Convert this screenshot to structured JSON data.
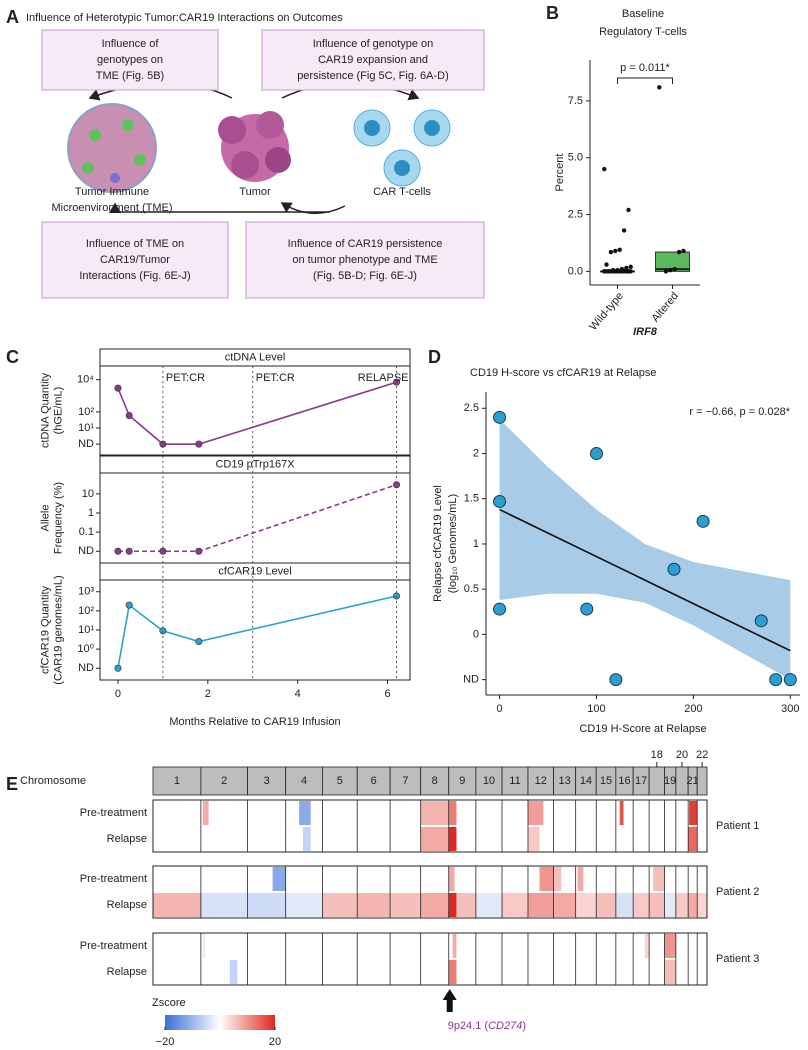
{
  "panel_a": {
    "label": "A",
    "title": "Influence of Heterotypic Tumor:CAR19 Interactions on Outcomes",
    "boxes": [
      {
        "lines": [
          "Influence of",
          "genotypes on",
          "TME (Fig. 5B)"
        ]
      },
      {
        "lines": [
          "Influence of genotype on",
          "CAR19 expansion and",
          "persistence (Fig 5C, Fig. 6A-D)"
        ]
      },
      {
        "lines": [
          "Influence of TME on",
          "CAR19/Tumor",
          "Interactions (Fig. 6E-J)"
        ]
      },
      {
        "lines": [
          "Influence of CAR19 persistence",
          "on tumor phenotype and TME",
          "(Fig. 5B-D; Fig. 6E-J)"
        ]
      }
    ],
    "nodes": [
      {
        "lines": [
          "Tumor Immune",
          "Microenvironment (TME)"
        ],
        "color": "#3f9f3f"
      },
      {
        "lines": [
          "Tumor"
        ],
        "color": "#8b3a8f"
      },
      {
        "lines": [
          "CAR T-cells"
        ],
        "color": "#2e9fd0"
      }
    ]
  },
  "chart_data": [
    {
      "label": "B",
      "type": "box",
      "title": [
        "Baseline",
        "Regulatory T-cells"
      ],
      "ylabel": "Percent",
      "xlabel": "IRF8",
      "categories": [
        "Wild-type",
        "Altered"
      ],
      "points": [
        [
          4.5,
          2.7,
          1.8,
          0.95,
          0.9,
          0.85,
          0.3,
          0.2,
          0.15,
          0.1,
          0.05,
          0.05,
          0,
          0,
          0,
          0,
          0,
          0,
          0,
          0,
          0,
          0,
          0,
          0,
          0,
          0,
          0,
          0
        ],
        [
          8.1,
          0.9,
          0.85,
          0.1,
          0.05,
          0
        ]
      ],
      "boxes": [
        {
          "q1": 0,
          "median": 0,
          "q3": 0
        },
        {
          "q1": 0,
          "median": 0.1,
          "q3": 0.85
        }
      ],
      "colors": [
        "#888888",
        "#5cb85c"
      ],
      "ylim": [
        -0.6,
        9.3
      ],
      "yticks": [
        {
          "value": 0,
          "label": "0.0"
        },
        2.5,
        {
          "value": 5,
          "label": "5.0"
        },
        7.5
      ],
      "annotation": "p = 0.011*"
    },
    {
      "label": "C",
      "type": "line",
      "xlabel": "Months Relative to CAR19 Infusion",
      "xlim": [
        -0.4,
        6.5
      ],
      "xticks": [
        0,
        2,
        4,
        6
      ],
      "vlines": [
        {
          "x": 1,
          "label": "PET:CR"
        },
        {
          "x": 3,
          "label": "PET:CR"
        },
        {
          "x": 6.2,
          "label": "RELAPSE"
        }
      ],
      "panels": [
        {
          "title": "ctDNA Level",
          "ylabel": [
            "ctDNA Quantity",
            "(hGE/mL)"
          ],
          "log_y": true,
          "ylim": [
            0.5,
            30000
          ],
          "yticks": [
            {
              "value": 1,
              "label": "ND"
            },
            {
              "value": 10,
              "label": "10¹"
            },
            {
              "value": 100,
              "label": "10²"
            },
            {
              "value": 10000,
              "label": "10⁴"
            }
          ],
          "x": [
            0,
            0.25,
            1,
            1.8,
            6.2
          ],
          "values": [
            3000,
            60,
            1,
            1,
            7000
          ],
          "color": "#8b3a8f",
          "dashed": false
        },
        {
          "title": "CD19 pTrp167X",
          "ylabel": [
            "Allele",
            "Frequency (%)"
          ],
          "log_y": true,
          "ylim": [
            0.005,
            60
          ],
          "yticks": [
            {
              "value": 0.01,
              "label": "ND"
            },
            0.1,
            1,
            10
          ],
          "x": [
            0,
            0.25,
            1,
            1.8,
            6.2
          ],
          "values": [
            0.01,
            0.01,
            0.01,
            0.01,
            30
          ],
          "color": "#8b3a8f",
          "dashed": true
        },
        {
          "title": "cfCAR19 Level",
          "ylabel": [
            "cfCAR19 Quantity",
            "(CAR19 genomes/mL)"
          ],
          "log_y": true,
          "ylim": [
            0.05,
            2000
          ],
          "yticks": [
            {
              "value": 0.1,
              "label": "ND"
            },
            {
              "value": 1,
              "label": "10⁰"
            },
            {
              "value": 10,
              "label": "10¹"
            },
            {
              "value": 100,
              "label": "10²"
            },
            {
              "value": 1000,
              "label": "10³"
            }
          ],
          "x": [
            0,
            0.25,
            1,
            1.8,
            6.2
          ],
          "values": [
            0.1,
            200,
            9,
            2.5,
            600
          ],
          "color": "#2aa3c9",
          "dashed": false
        }
      ]
    },
    {
      "label": "D",
      "type": "scatter",
      "title": "CD19 H-score vs cfCAR19 at Relapse",
      "annotation": "r = −0.66, p = 0.028*",
      "xlabel": "CD19 H-Score at Relapse",
      "ylabel": [
        "Relapse cfCAR19 Level",
        "(log₁₀ Genomes/mL)"
      ],
      "x": [
        0,
        0,
        0,
        90,
        100,
        120,
        180,
        210,
        270,
        285,
        300
      ],
      "values": [
        2.4,
        1.47,
        0.28,
        0.28,
        2.0,
        -0.5,
        0.72,
        1.25,
        0.15,
        -0.5,
        -0.5
      ],
      "color": "#2a9fd0",
      "fit": {
        "x": [
          0,
          300
        ],
        "y": [
          1.38,
          -0.18
        ]
      },
      "ci": {
        "x": [
          0,
          50,
          100,
          150,
          200,
          250,
          300
        ],
        "upper": [
          2.38,
          1.85,
          1.38,
          1.0,
          0.8,
          0.7,
          0.6
        ],
        "lower": [
          0.38,
          0.45,
          0.45,
          0.35,
          0.1,
          -0.2,
          -0.5
        ],
        "color": "#9fc6e6"
      },
      "xlim": [
        -14,
        310
      ],
      "xticks": [
        0,
        100,
        200,
        300
      ],
      "ylim": [
        -0.67,
        2.68
      ],
      "yticks": [
        {
          "value": -0.5,
          "label": "ND"
        },
        0,
        0.5,
        1,
        1.5,
        2,
        2.5
      ]
    },
    {
      "label": "E",
      "type": "heatmap",
      "header": "Chromosome",
      "chromosomes": [
        "1",
        "2",
        "3",
        "4",
        "5",
        "6",
        "7",
        "8",
        "9",
        "10",
        "11",
        "12",
        "13",
        "14",
        "15",
        "16",
        "17",
        "18",
        "19",
        "20",
        "21",
        "22"
      ],
      "chromosome_lengths": [
        249,
        243,
        198,
        191,
        181,
        171,
        159,
        146,
        141,
        136,
        135,
        133,
        115,
        107,
        102,
        90,
        83,
        80,
        59,
        64,
        47,
        51
      ],
      "patients": [
        {
          "name": "Patient 1",
          "rows": [
            {
              "name": "Pre-treatment",
              "segments": [
                {
                  "chr": "2",
                  "start": 10,
                  "end": 40,
                  "z": 8
                },
                {
                  "chr": "4",
                  "start": 70,
                  "end": 130,
                  "z": -12
                },
                {
                  "chr": "8",
                  "start": 0,
                  "end": 146,
                  "z": 7
                },
                {
                  "chr": "9",
                  "start": 0,
                  "end": 40,
                  "z": 12
                },
                {
                  "chr": "12",
                  "start": 0,
                  "end": 80,
                  "z": 9
                },
                {
                  "chr": "16",
                  "start": 20,
                  "end": 40,
                  "z": 16
                },
                {
                  "chr": "21",
                  "start": 5,
                  "end": 47,
                  "z": 18
                }
              ]
            },
            {
              "name": "Relapse",
              "segments": [
                {
                  "chr": "4",
                  "start": 90,
                  "end": 130,
                  "z": -6
                },
                {
                  "chr": "8",
                  "start": 0,
                  "end": 146,
                  "z": 8
                },
                {
                  "chr": "9",
                  "start": 0,
                  "end": 40,
                  "z": 20
                },
                {
                  "chr": "12",
                  "start": 0,
                  "end": 60,
                  "z": 5
                },
                {
                  "chr": "21",
                  "start": 0,
                  "end": 47,
                  "z": 14
                }
              ]
            }
          ]
        },
        {
          "name": "Patient 2",
          "rows": [
            {
              "name": "Pre-treatment",
              "segments": [
                {
                  "chr": "3",
                  "start": 130,
                  "end": 198,
                  "z": -12
                },
                {
                  "chr": "9",
                  "start": 0,
                  "end": 30,
                  "z": 8
                },
                {
                  "chr": "12",
                  "start": 60,
                  "end": 133,
                  "z": 10
                },
                {
                  "chr": "13",
                  "start": 0,
                  "end": 40,
                  "z": 6
                },
                {
                  "chr": "14",
                  "start": 10,
                  "end": 40,
                  "z": 8
                },
                {
                  "chr": "18",
                  "start": 20,
                  "end": 80,
                  "z": 6
                }
              ]
            },
            {
              "name": "Relapse",
              "segments": [
                {
                  "chr": "1",
                  "start": 0,
                  "end": 249,
                  "z": 7
                },
                {
                  "chr": "2",
                  "start": 0,
                  "end": 243,
                  "z": -4
                },
                {
                  "chr": "3",
                  "start": 0,
                  "end": 198,
                  "z": -5
                },
                {
                  "chr": "4",
                  "start": 0,
                  "end": 191,
                  "z": -3
                },
                {
                  "chr": "5",
                  "start": 0,
                  "end": 181,
                  "z": 6
                },
                {
                  "chr": "6",
                  "start": 0,
                  "end": 171,
                  "z": 7
                },
                {
                  "chr": "7",
                  "start": 0,
                  "end": 159,
                  "z": 6
                },
                {
                  "chr": "8",
                  "start": 0,
                  "end": 146,
                  "z": 8
                },
                {
                  "chr": "9",
                  "start": 0,
                  "end": 40,
                  "z": 20
                },
                {
                  "chr": "9",
                  "start": 40,
                  "end": 141,
                  "z": 6
                },
                {
                  "chr": "10",
                  "start": 0,
                  "end": 136,
                  "z": -3
                },
                {
                  "chr": "11",
                  "start": 0,
                  "end": 135,
                  "z": 5
                },
                {
                  "chr": "12",
                  "start": 0,
                  "end": 133,
                  "z": 9
                },
                {
                  "chr": "13",
                  "start": 0,
                  "end": 115,
                  "z": 8
                },
                {
                  "chr": "14",
                  "start": 0,
                  "end": 107,
                  "z": 4
                },
                {
                  "chr": "15",
                  "start": 0,
                  "end": 102,
                  "z": 6
                },
                {
                  "chr": "16",
                  "start": 0,
                  "end": 90,
                  "z": -4
                },
                {
                  "chr": "17",
                  "start": 0,
                  "end": 83,
                  "z": 5
                },
                {
                  "chr": "18",
                  "start": 0,
                  "end": 80,
                  "z": 6
                },
                {
                  "chr": "19",
                  "start": 0,
                  "end": 59,
                  "z": -3
                },
                {
                  "chr": "20",
                  "start": 0,
                  "end": 64,
                  "z": 5
                },
                {
                  "chr": "21",
                  "start": 0,
                  "end": 47,
                  "z": 8
                },
                {
                  "chr": "22",
                  "start": 0,
                  "end": 51,
                  "z": 4
                }
              ]
            }
          ]
        },
        {
          "name": "Patient 3",
          "rows": [
            {
              "name": "Pre-treatment",
              "segments": [
                {
                  "chr": "2",
                  "start": 10,
                  "end": 20,
                  "z": -3
                },
                {
                  "chr": "9",
                  "start": 20,
                  "end": 40,
                  "z": 8
                },
                {
                  "chr": "17",
                  "start": 60,
                  "end": 83,
                  "z": 4
                },
                {
                  "chr": "19",
                  "start": 0,
                  "end": 59,
                  "z": 10
                }
              ]
            },
            {
              "name": "Relapse",
              "segments": [
                {
                  "chr": "2",
                  "start": 150,
                  "end": 190,
                  "z": -6
                },
                {
                  "chr": "9",
                  "start": 0,
                  "end": 40,
                  "z": 12
                },
                {
                  "chr": "19",
                  "start": 0,
                  "end": 59,
                  "z": 6
                }
              ]
            }
          ]
        }
      ],
      "colorbar": {
        "title": "Zscore",
        "range": [
          -20,
          20
        ],
        "ticks": [
          {
            "value": -20,
            "label": "−20"
          },
          20
        ],
        "colors": [
          "#3b6fd9",
          "#ffffff",
          "#e0281e"
        ]
      },
      "annotation": {
        "prefix": "9p24.1 (",
        "gene": "CD274",
        "suffix": ")",
        "chr": "9",
        "position": 5,
        "color": "#8b3a8f"
      }
    }
  ]
}
